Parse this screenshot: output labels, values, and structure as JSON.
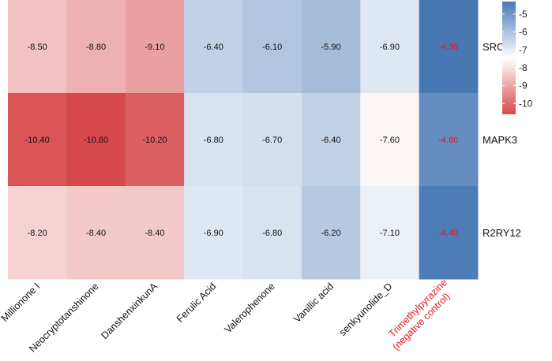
{
  "chart_data": {
    "type": "heatmap",
    "title": "",
    "columns": [
      {
        "label": "Millionone I"
      },
      {
        "label": "Neocryptotanshinone"
      },
      {
        "label": "DanshenxinkunA"
      },
      {
        "label": "Ferulic Acid"
      },
      {
        "label": "Valerophenone"
      },
      {
        "label": "Vanillic acid"
      },
      {
        "label": "senkyunolide_D"
      },
      {
        "label": "Trimethylpyrazine\n(negative control)",
        "highlight": true
      }
    ],
    "rows": [
      "SRC",
      "MAPK3",
      "R2RY12"
    ],
    "values": [
      [
        -8.5,
        -8.8,
        -9.1,
        -6.4,
        -6.1,
        -5.9,
        -6.9,
        -4.3
      ],
      [
        -10.4,
        -10.6,
        -10.2,
        -6.8,
        -6.7,
        -6.4,
        -7.6,
        -4.8
      ],
      [
        -8.2,
        -8.4,
        -8.4,
        -6.9,
        -6.8,
        -6.2,
        -7.1,
        -4.4
      ]
    ],
    "value_labels": [
      [
        "-8.50",
        "-8.80",
        "-9.10",
        "-6.40",
        "-6.10",
        "-5.90",
        "-6.90",
        "-4.30"
      ],
      [
        "-10.40",
        "-10.60",
        "-10.20",
        "-6.80",
        "-6.70",
        "-6.40",
        "-7.60",
        "-4.80"
      ],
      [
        "-8.20",
        "-8.40",
        "-8.40",
        "-6.90",
        "-6.80",
        "-6.20",
        "-7.10",
        "-4.40"
      ]
    ],
    "colorscale": {
      "min": -10.6,
      "mid": -7.45,
      "max": -4.3,
      "low_color": "#d7484a",
      "mid_color": "#ffffff",
      "high_color": "#4878b4"
    },
    "colorbar": {
      "ticks": [
        -5,
        -6,
        -7,
        -8,
        -9,
        -10
      ],
      "tick_labels": [
        "-5",
        "-6",
        "-7",
        "-8",
        "-9",
        "-10"
      ]
    },
    "text_color": "#111111",
    "highlight_color": "#e8131d"
  }
}
